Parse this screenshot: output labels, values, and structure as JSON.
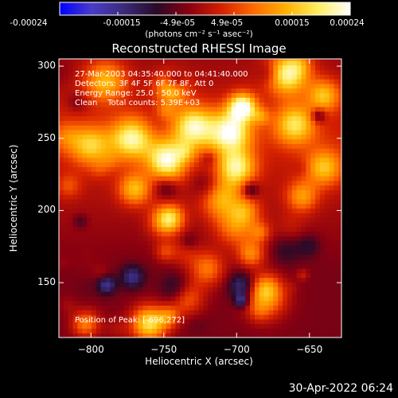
{
  "colorbar": {
    "ticks": [
      "-0.00024",
      "-0.00015",
      "-4.9e-05",
      "4.9e-05",
      "0.00015",
      "0.00024"
    ],
    "units_label": "(photons cm⁻² s⁻¹ asec⁻²)"
  },
  "chart_data": {
    "type": "heatmap",
    "title": "Reconstructed RHESSI Image",
    "xlabel": "Heliocentric X (arcsec)",
    "ylabel": "Heliocentric Y (arcsec)",
    "xlim": [
      -822,
      -628
    ],
    "ylim": [
      112,
      305
    ],
    "xticks": [
      -800,
      -750,
      -700,
      -650
    ],
    "xtick_labels": [
      "−800",
      "−750",
      "−700",
      "−650"
    ],
    "yticks": [
      150,
      200,
      250,
      300
    ],
    "ytick_labels": [
      "150",
      "200",
      "250",
      "300"
    ],
    "value_range": [
      -0.00024,
      0.00024
    ],
    "colormap": [
      "#0000ff",
      "#4b3cc8",
      "#3a2a7a",
      "#2a0a28",
      "#8a0010",
      "#d42000",
      "#ff6a00",
      "#ffb000",
      "#ffee60",
      "#ffffff"
    ],
    "overlay_text": [
      "27-Mar-2003 04:35:40.000 to 04:41:40.000",
      "Detectors: 3F 4F 5F 6F 7F 8F, Att 0",
      "Energy Range: 25.0 - 50.0 keV",
      "Clean    Total counts: 5.39E+03"
    ],
    "peak_label": "Position of Peak: [-696,272]",
    "peak": [
      -696,
      272
    ]
  },
  "timestamp": "30-Apr-2022 06:24"
}
